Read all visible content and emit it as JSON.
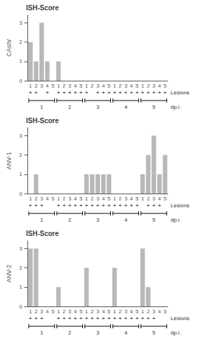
{
  "chart_data": [
    {
      "type": "bar",
      "title": "ISH-Score",
      "ylabel": "CAstV",
      "categories": [
        "1",
        "2",
        "3",
        "4",
        "5",
        "1",
        "2",
        "3",
        "4",
        "5",
        "1",
        "2",
        "3",
        "4",
        "5",
        "1",
        "2",
        "3",
        "4",
        "5",
        "1",
        "2",
        "3",
        "4",
        "5"
      ],
      "values": [
        2,
        1,
        3,
        1,
        0,
        1,
        0,
        0,
        0,
        0,
        0,
        0,
        0,
        0,
        0,
        0,
        0,
        0,
        0,
        0,
        0,
        0,
        0,
        0,
        0
      ],
      "color": "#b8b8b8",
      "ylim": [
        0,
        3.4
      ],
      "yticks": [
        0,
        1,
        2,
        3
      ],
      "grid": false,
      "annotations": {
        "lesions": [
          "+",
          "+",
          null,
          "+",
          null,
          "+",
          "+",
          "+",
          "+",
          "+",
          "+",
          null,
          "+",
          "+",
          "+",
          "+",
          "+",
          "+",
          "+",
          "+",
          "+",
          "+",
          "+",
          "+",
          "+"
        ],
        "lesions_label": "Lesions",
        "day_groups": [
          "1",
          "2",
          "3",
          "4",
          "5"
        ],
        "day_label": "dp.i."
      }
    },
    {
      "type": "bar",
      "title": "ISH-Score",
      "ylabel": "ANV-1",
      "categories": [
        "1",
        "2",
        "3",
        "4",
        "5",
        "1",
        "2",
        "3",
        "4",
        "5",
        "1",
        "2",
        "3",
        "4",
        "5",
        "1",
        "2",
        "3",
        "4",
        "5",
        "1",
        "2",
        "3",
        "4",
        "5"
      ],
      "values": [
        0,
        1,
        0,
        0,
        0,
        0,
        0,
        0,
        0,
        0,
        1,
        1,
        1,
        1,
        1,
        0,
        0,
        0,
        0,
        0,
        1,
        2,
        3,
        1,
        2
      ],
      "color": "#b8b8b8",
      "ylim": [
        0,
        3.4
      ],
      "yticks": [
        0,
        1,
        2,
        3
      ],
      "grid": false,
      "annotations": {
        "lesions": [
          "+",
          "+",
          "+",
          null,
          null,
          "+",
          "+",
          "+",
          "+",
          "+",
          "+",
          "+",
          "+",
          "+",
          "+",
          "+",
          "+",
          "+",
          "+",
          "+",
          null,
          "+",
          "+",
          "+",
          null
        ],
        "lesions_label": "Lesions",
        "day_groups": [
          "1",
          "2",
          "3",
          "4",
          "5"
        ],
        "day_label": "dp.i."
      }
    },
    {
      "type": "bar",
      "title": "ISH-Score",
      "ylabel": "ANV-2",
      "categories": [
        "1",
        "2",
        "3",
        "4",
        "5",
        "1",
        "2",
        "3",
        "4",
        "5",
        "1",
        "2",
        "3",
        "4",
        "5",
        "1",
        "2",
        "3",
        "4",
        "5",
        "1",
        "2",
        "3",
        "4",
        "5"
      ],
      "values": [
        3,
        3,
        0,
        0,
        0,
        1,
        0,
        0,
        0,
        0,
        2,
        0,
        0,
        0,
        0,
        2,
        0,
        0,
        0,
        0,
        3,
        1,
        0,
        0,
        0
      ],
      "color": "#b8b8b8",
      "ylim": [
        0,
        3.4
      ],
      "yticks": [
        0,
        1,
        2,
        3
      ],
      "grid": false,
      "annotations": {
        "lesions": [
          "+",
          "+",
          "+",
          null,
          null,
          "+",
          "+",
          "+",
          "+",
          "+",
          "+",
          "+",
          "+",
          "+",
          "+",
          "+",
          "+",
          "+",
          "+",
          "+",
          "+",
          "+",
          "+",
          null,
          null
        ],
        "lesions_label": "Lesions",
        "day_groups": [
          "1",
          "2",
          "3",
          "4",
          "5"
        ],
        "day_label": "dp.i."
      }
    }
  ]
}
